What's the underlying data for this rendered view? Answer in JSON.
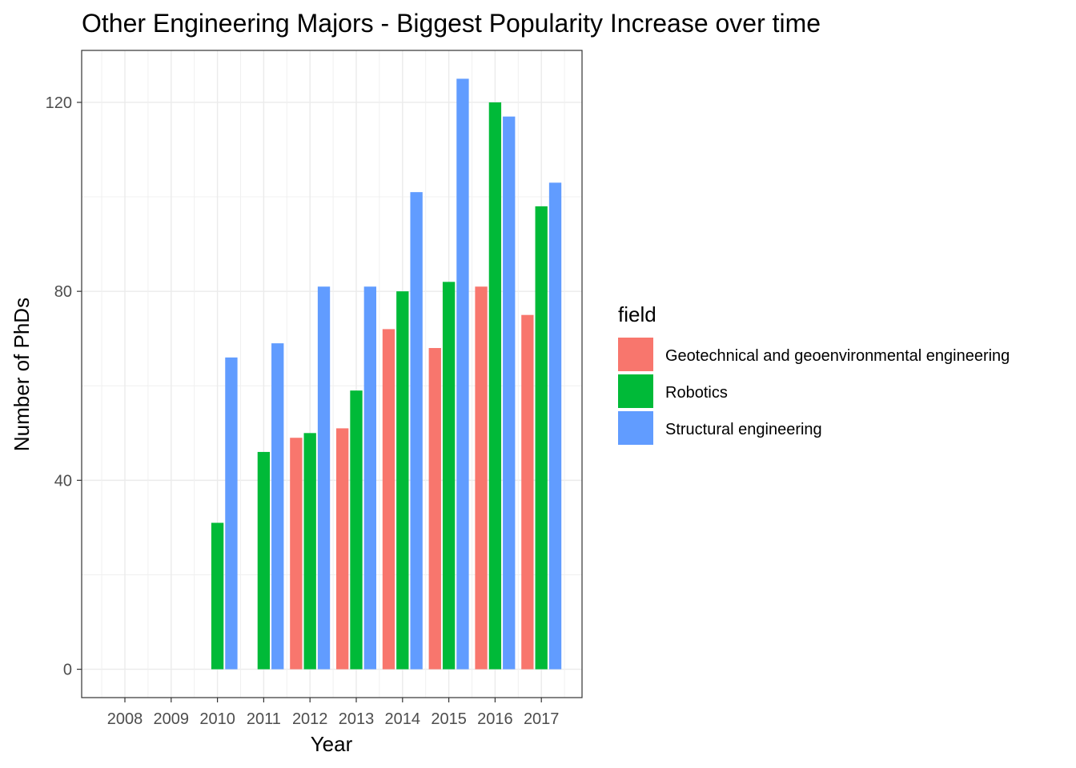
{
  "chart_data": {
    "type": "bar",
    "title": "Other Engineering Majors - Biggest Popularity Increase over time",
    "xlabel": "Year",
    "ylabel": "Number of PhDs",
    "categories": [
      "2008",
      "2009",
      "2010",
      "2011",
      "2012",
      "2013",
      "2014",
      "2015",
      "2016",
      "2017"
    ],
    "ylim": [
      -6,
      131
    ],
    "yticks": [
      0,
      40,
      80,
      120
    ],
    "grid": true,
    "legend": {
      "title": "field",
      "position": "right"
    },
    "series": [
      {
        "name": "Geotechnical and geoenvironmental engineering",
        "color": "#F8766D",
        "values": [
          null,
          null,
          null,
          null,
          49,
          51,
          72,
          68,
          81,
          75
        ]
      },
      {
        "name": "Robotics",
        "color": "#00BA38",
        "values": [
          null,
          null,
          31,
          46,
          50,
          59,
          80,
          82,
          120,
          98
        ]
      },
      {
        "name": "Structural engineering",
        "color": "#619CFF",
        "values": [
          null,
          null,
          66,
          69,
          81,
          81,
          101,
          125,
          117,
          103
        ]
      }
    ]
  }
}
